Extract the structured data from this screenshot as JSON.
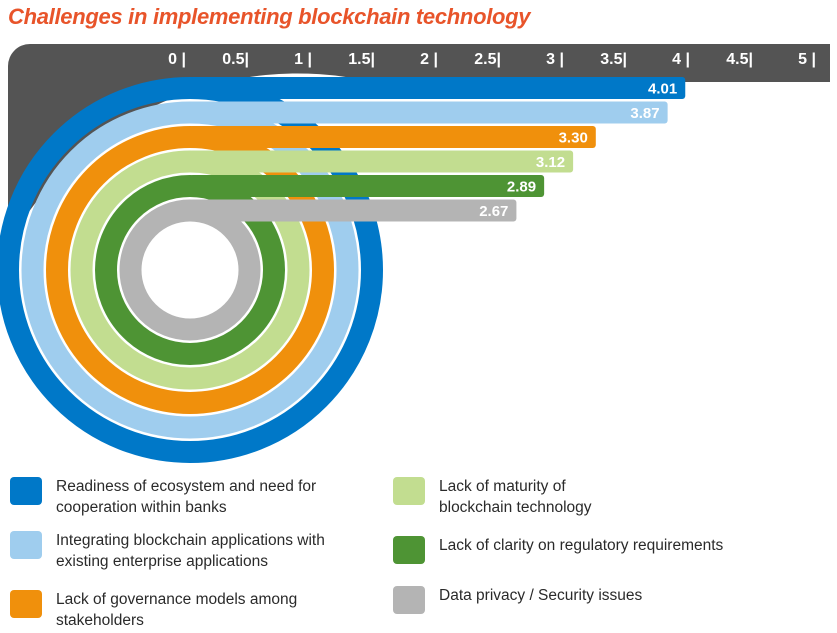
{
  "chart_data": {
    "type": "radial-bar",
    "title": "Challenges in implementing blockchain technology",
    "xlim": [
      0,
      5
    ],
    "tick_labels": [
      "0 |",
      "0.5|",
      "1 |",
      "1.5|",
      "2 |",
      "2.5|",
      "3 |",
      "3.5|",
      "4 |",
      "4.5|",
      "5 |"
    ],
    "tick_values": [
      0,
      0.5,
      1,
      1.5,
      2,
      2.5,
      3,
      3.5,
      4,
      4.5,
      5
    ],
    "series": [
      {
        "name": "Readiness of ecosystem and need  for\ncooperation within banks",
        "value": 4.01,
        "label": "4.01",
        "color": "#0078c8"
      },
      {
        "name": "Integrating blockchain applications  with\nexisting enterprise applications",
        "value": 3.87,
        "label": "3.87",
        "color": "#9fcdee"
      },
      {
        "name": "Lack of governance models  among\nstakeholders",
        "value": 3.3,
        "label": "3.30",
        "color": "#f0900c"
      },
      {
        "name": "Lack of maturity of\nblockchain technology",
        "value": 3.12,
        "label": "3.12",
        "color": "#c2dd90"
      },
      {
        "name": "Lack of clarity on regulatory requirements",
        "value": 2.89,
        "label": "2.89",
        "color": "#4e9434"
      },
      {
        "name": "Data privacy / Security issues",
        "value": 2.67,
        "label": "2.67",
        "color": "#b4b4b4"
      }
    ]
  }
}
